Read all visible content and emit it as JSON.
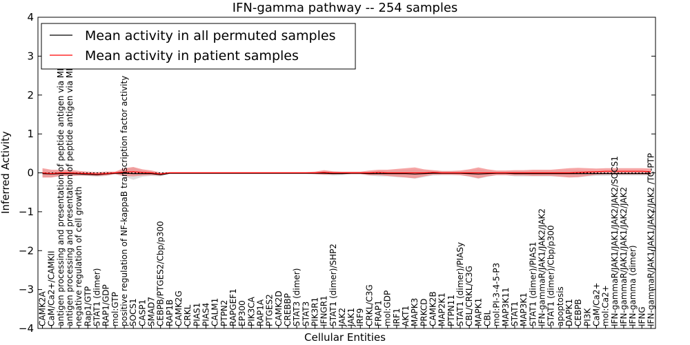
{
  "chart_data": {
    "type": "line",
    "title": "IFN-gamma pathway -- 254 samples",
    "xlabel": "Cellular Entities",
    "ylabel": "Inferred Activity",
    "ylim": [
      -4,
      4
    ],
    "yticks": [
      -4,
      -3,
      -2,
      -1,
      0,
      1,
      2,
      3,
      4
    ],
    "ytick_labels": [
      "−4",
      "−3",
      "−2",
      "−1",
      "0",
      "1",
      "2",
      "3",
      "4"
    ],
    "legend_position": "top-left",
    "categories": [
      "CAMK2A",
      "CaM/Ca2+/CAMKII",
      "antigen processing and presentation of peptide antigen via MHC class I",
      "antigen processing and presentation of peptide antigen via MHC class II",
      "negative regulation of cell growth",
      "Rap1/GTP",
      "STAT1 (dimer)",
      "RAP1/GDP",
      "mol:GTP",
      "positive regulation of NF-kappaB transcription factor activity",
      "SOCS1",
      "CASP1",
      "SMAD7",
      "CEBPB/PTGES2/Cbp/p300",
      "RAP1B",
      "CAMK2G",
      "CRKL",
      "PIAS1",
      "PIAS4",
      "CALM1",
      "PTPN2",
      "RAPGEF1",
      "EP300",
      "PIK3CA",
      "RAP1A",
      "PTGES2",
      "CAMK2D",
      "CREBBP",
      "STAT3 (dimer)",
      "STAT3",
      "PIK3R1",
      "IFNGR1",
      "STAT1 (dimer)/SHP2",
      "JAK2",
      "JAK1",
      "IRF9",
      "CRKL/C3G",
      "FRAP1",
      "mol:GDP",
      "IRF1",
      "AKT1",
      "MAPK3",
      "PRKCD",
      "CAMK2B",
      "MAP2K1",
      "PTPN11",
      "STAT1 (dimer)/PIASy",
      "CBL/CRKL/C3G",
      "MAPK1",
      "CBL",
      "mol:PI-3-4-5-P3",
      "MAP3K11",
      "STAT1",
      "MAP3K1",
      "STAT1 (dimer)/PIAS1",
      "IFN-gammaR/JAK1/JAK2/JAK2",
      "STAT1 (dimer)/Cbp/p300",
      "apoptosis",
      "DAPK1",
      "CEBPB",
      "PI3K",
      "CaM/Ca2+",
      "mol:Ca2+",
      "IFN-gammaR/JAK1/JAK1/JAK2/JAK2/SOCS1",
      "IFN-gammaR/JAK1/JAK1/JAK2/JAK2",
      "IFN-gamma (dimer)",
      "IFNG",
      "IFN-gammaR/JAK1/JAK1/JAK2/JAK2  /TC-PTP"
    ],
    "series": [
      {
        "name": "Mean activity in all permuted samples",
        "color": "#000000",
        "band_color": "#d4d4d4",
        "values": [
          -0.02,
          -0.03,
          -0.02,
          -0.02,
          -0.03,
          -0.04,
          -0.05,
          -0.03,
          -0.01,
          -0.01,
          -0.02,
          -0.02,
          -0.02,
          -0.05,
          -0.01,
          -0.01,
          -0.01,
          -0.01,
          -0.01,
          -0.01,
          -0.01,
          -0.01,
          -0.01,
          -0.01,
          -0.01,
          -0.01,
          -0.01,
          -0.01,
          -0.01,
          -0.01,
          -0.01,
          -0.01,
          -0.02,
          -0.02,
          -0.01,
          -0.01,
          -0.02,
          -0.02,
          -0.02,
          -0.02,
          -0.02,
          -0.03,
          -0.02,
          -0.01,
          -0.01,
          -0.01,
          -0.01,
          -0.02,
          -0.03,
          -0.02,
          -0.01,
          -0.01,
          -0.02,
          -0.02,
          -0.02,
          -0.02,
          -0.02,
          -0.02,
          -0.02,
          -0.02,
          -0.02,
          -0.02,
          -0.02,
          -0.02,
          -0.02,
          -0.02,
          -0.02,
          -0.02
        ],
        "spread": [
          0.1,
          0.08,
          0.06,
          0.06,
          0.05,
          0.04,
          0.05,
          0.05,
          0.03,
          0.08,
          0.16,
          0.08,
          0.06,
          0.04,
          0.02,
          0.02,
          0.02,
          0.02,
          0.02,
          0.02,
          0.02,
          0.02,
          0.02,
          0.02,
          0.02,
          0.02,
          0.02,
          0.02,
          0.02,
          0.02,
          0.03,
          0.04,
          0.05,
          0.04,
          0.03,
          0.03,
          0.05,
          0.07,
          0.07,
          0.09,
          0.1,
          0.12,
          0.09,
          0.06,
          0.05,
          0.05,
          0.05,
          0.08,
          0.12,
          0.08,
          0.05,
          0.05,
          0.07,
          0.07,
          0.07,
          0.07,
          0.07,
          0.08,
          0.09,
          0.09,
          0.07,
          0.06,
          0.06,
          0.05,
          0.05,
          0.05,
          0.05,
          0.05
        ]
      },
      {
        "name": "Mean activity in patient samples",
        "color": "#ff0000",
        "band_color": "#f28080",
        "values": [
          0.0,
          -0.02,
          0.0,
          0.0,
          -0.01,
          -0.02,
          -0.03,
          -0.02,
          0.0,
          0.02,
          0.03,
          0.01,
          0.0,
          -0.03,
          0.0,
          0.0,
          0.0,
          0.0,
          0.0,
          0.0,
          0.0,
          0.0,
          0.0,
          0.0,
          0.0,
          0.0,
          0.0,
          0.0,
          0.0,
          0.0,
          0.0,
          0.01,
          0.0,
          0.0,
          0.0,
          0.0,
          0.0,
          0.01,
          0.0,
          0.0,
          0.0,
          0.0,
          0.0,
          0.01,
          0.0,
          0.0,
          0.0,
          0.0,
          0.0,
          0.0,
          0.0,
          0.0,
          0.0,
          0.0,
          0.0,
          0.0,
          0.0,
          0.0,
          0.0,
          0.01,
          0.02,
          0.03,
          0.04,
          0.04,
          0.04,
          0.04,
          0.04,
          0.03
        ],
        "spread": [
          0.12,
          0.1,
          0.08,
          0.08,
          0.06,
          0.05,
          0.05,
          0.05,
          0.03,
          0.1,
          0.12,
          0.08,
          0.06,
          0.04,
          0.02,
          0.02,
          0.02,
          0.02,
          0.02,
          0.02,
          0.02,
          0.02,
          0.02,
          0.02,
          0.02,
          0.02,
          0.02,
          0.02,
          0.02,
          0.02,
          0.03,
          0.06,
          0.04,
          0.03,
          0.03,
          0.03,
          0.06,
          0.07,
          0.08,
          0.1,
          0.12,
          0.14,
          0.09,
          0.06,
          0.05,
          0.05,
          0.06,
          0.09,
          0.14,
          0.09,
          0.06,
          0.06,
          0.07,
          0.07,
          0.08,
          0.08,
          0.08,
          0.1,
          0.12,
          0.12,
          0.1,
          0.08,
          0.08,
          0.08,
          0.08,
          0.08,
          0.08,
          0.08
        ]
      }
    ]
  }
}
